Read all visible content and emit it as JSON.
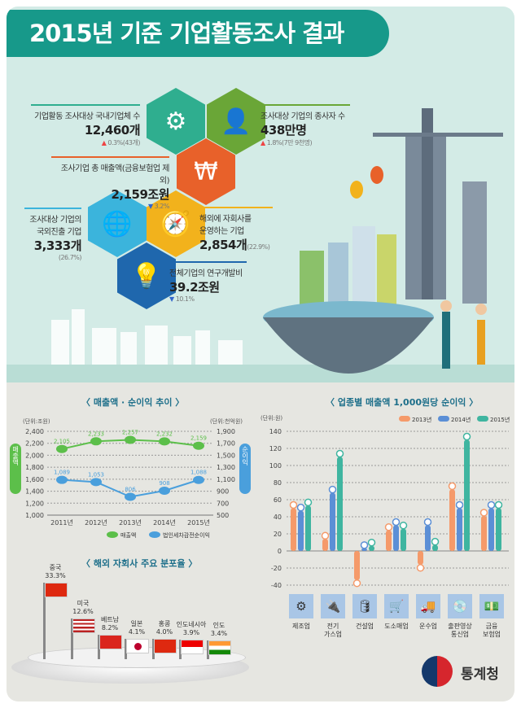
{
  "title": "2015년 기준 기업활동조사 결과",
  "stats": [
    {
      "label": "기업활동 조사대상 국내기업체 수",
      "value": "12,460개",
      "change": "0.3%(43개)",
      "dir": "up",
      "icon": "gears-icon",
      "color": "#2fae8f"
    },
    {
      "label": "조사대상 기업의 종사자 수",
      "value": "438만명",
      "change": "1.8%(7만 9천명)",
      "dir": "up",
      "icon": "person-icon",
      "color": "#6aa637"
    },
    {
      "label": "조사기업 총 매출액(금융보험업 제외)",
      "value": "2,159조원",
      "change": "3.2%",
      "dir": "down",
      "icon": "won-coin-icon",
      "color": "#e8612a"
    },
    {
      "label1": "조사대상 기업의",
      "label2": "국외진출 기업",
      "value": "3,333개",
      "change": "(26.7%)",
      "icon": "globe-icon",
      "color": "#3bb4dc"
    },
    {
      "label1": "해외에 자회사를",
      "label2": "운영하는 기업",
      "value": "2,854개",
      "change": "(22.9%)",
      "icon": "compass-icon",
      "color": "#f2b21c"
    },
    {
      "label": "전체기업의 연구개발비",
      "value": "39.2조원",
      "change": "10.1%",
      "dir": "down",
      "icon": "lightbulb-icon",
      "color": "#1f67ad"
    }
  ],
  "chart_data": [
    {
      "type": "line",
      "title": "〈 매출액 · 순이익 추이 〉",
      "categories": [
        "2011년",
        "2012년",
        "2013년",
        "2014년",
        "2015년"
      ],
      "left_unit": "(단위:조원)",
      "right_unit": "(단위:천억원)",
      "left_axis_label": "매출액",
      "right_axis_label": "순이익",
      "ylim_left": [
        1000,
        2400
      ],
      "ylim_right": [
        500,
        1900
      ],
      "yticks_left": [
        "1,000",
        "1,200",
        "1,400",
        "1,600",
        "1,800",
        "2,000",
        "2,200",
        "2,400"
      ],
      "yticks_right": [
        "500",
        "700",
        "900",
        "1,100",
        "1,300",
        "1,500",
        "1,700",
        "1,900"
      ],
      "series": [
        {
          "name": "매출액",
          "axis": "left",
          "color": "#5cbf4a",
          "values": [
            2105,
            2233,
            2257,
            2232,
            2159
          ],
          "labels": [
            "2,105",
            "2,233",
            "2,257",
            "2,232",
            "2,159"
          ]
        },
        {
          "name": "법인세차감전순이익",
          "axis": "right",
          "color": "#4a9fdc",
          "values": [
            1089,
            1053,
            806,
            908,
            1088
          ],
          "labels": [
            "1,089",
            "1,053",
            "806",
            "908",
            "1,088"
          ]
        }
      ],
      "grid": true,
      "legend": "bottom"
    },
    {
      "type": "bar",
      "title": "〈 업종별 매출액 1,000원당 순이익 〉",
      "unit": "(단위:원)",
      "categories": [
        "제조업",
        "전기\n가스업",
        "건설업",
        "도소매업",
        "운수업",
        "출판영상\n통신업",
        "금융\n보험업"
      ],
      "icons": [
        "gears-icon",
        "plug-icon",
        "oil-pump-icon",
        "hand-truck-icon",
        "truck-icon",
        "disc-icon",
        "money-stack-icon"
      ],
      "ylim": [
        -40,
        140
      ],
      "yticks": [
        "140",
        "120",
        "100",
        "80",
        "60",
        "40",
        "20",
        "0",
        "-20",
        "-40"
      ],
      "series": [
        {
          "name": "2013년",
          "color": "#f59a6a",
          "values": [
            50,
            14,
            -34,
            24,
            -16,
            72,
            41
          ]
        },
        {
          "name": "2014년",
          "color": "#5b8fd6",
          "values": [
            47,
            68,
            3,
            30,
            30,
            50,
            50
          ]
        },
        {
          "name": "2015년",
          "color": "#3fb5a0",
          "values": [
            53,
            110,
            6,
            26,
            7,
            130,
            50
          ]
        }
      ],
      "grid": true,
      "legend": "top-right"
    },
    {
      "type": "bar",
      "title": "〈 해외 자회사 주요 분포율 〉",
      "categories": [
        "중국",
        "미국",
        "베트남",
        "일본",
        "홍콩",
        "인도네시아",
        "인도"
      ],
      "values": [
        33.3,
        12.6,
        8.2,
        4.1,
        4.0,
        3.9,
        3.4
      ],
      "labels": [
        "33.3%",
        "12.6%",
        "8.2%",
        "4.1%",
        "4.0%",
        "3.9%",
        "3.4%"
      ]
    }
  ],
  "logo": {
    "name": "통계청"
  }
}
